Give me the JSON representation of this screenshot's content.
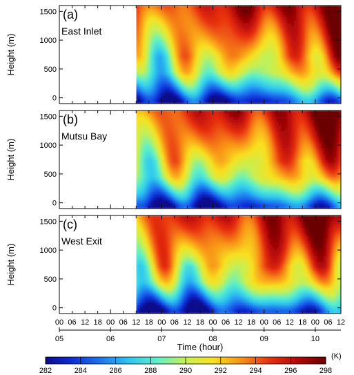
{
  "chart_data": {
    "type": "heatmap",
    "panels": [
      {
        "tag": "(a)",
        "name": "East Inlet"
      },
      {
        "tag": "(b)",
        "name": "Mutsu Bay"
      },
      {
        "tag": "(c)",
        "name": "West Exit"
      }
    ],
    "ylabel": "Height (m)",
    "xlabel": "Time (hour)",
    "ylim": [
      -100,
      1600
    ],
    "yticks": [
      0,
      500,
      1000,
      1500
    ],
    "xlim_hours": [
      0,
      132
    ],
    "data_start_hour": 36,
    "hour_tick_labels": [
      "00",
      "06",
      "12",
      "18",
      "00",
      "06",
      "12",
      "18",
      "00",
      "06",
      "12",
      "18",
      "00",
      "06",
      "12",
      "18",
      "00",
      "06",
      "12",
      "18",
      "00",
      "06",
      "12"
    ],
    "day_labels": [
      "05",
      "06",
      "07",
      "08",
      "09",
      "10"
    ],
    "colorbar": {
      "ticks": [
        282,
        284,
        286,
        288,
        290,
        292,
        294,
        296,
        298
      ],
      "unit": "(K)",
      "range": [
        282,
        298
      ],
      "colors": [
        "#0a0a8c",
        "#1030d8",
        "#1e78f0",
        "#2ec8f0",
        "#5ef0c8",
        "#c8f050",
        "#f8e020",
        "#f89018",
        "#e83010",
        "#b40808",
        "#6a0000"
      ]
    },
    "contour_interval_K": 0.5,
    "grid": false
  }
}
